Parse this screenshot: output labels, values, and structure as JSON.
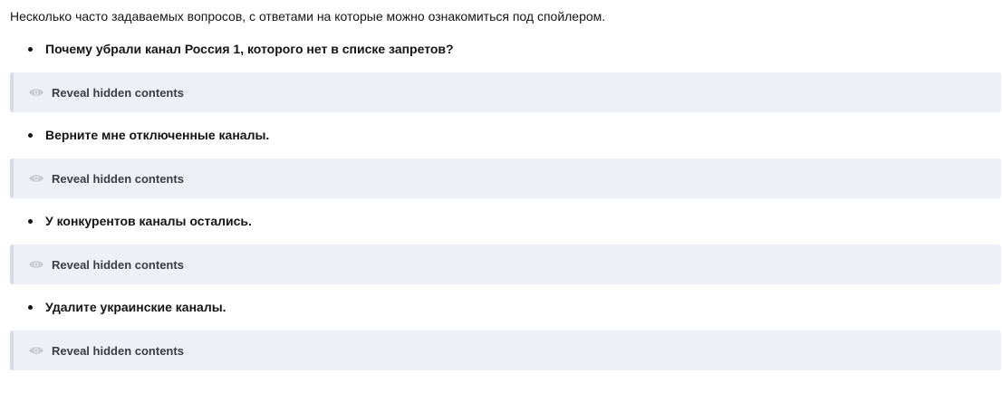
{
  "intro": "Несколько часто задаваемых вопросов, с ответами на которые можно ознакомиться под спойлером.",
  "items": [
    {
      "question": "Почему убрали канал Россия 1, которого нет в списке запретов?",
      "spoiler_label": "Reveal hidden contents"
    },
    {
      "question": "Верните мне отключенные каналы.",
      "spoiler_label": "Reveal hidden contents"
    },
    {
      "question": "У конкурентов каналы остались.",
      "spoiler_label": "Reveal hidden contents"
    },
    {
      "question": "Удалите украинские каналы.",
      "spoiler_label": "Reveal hidden contents"
    }
  ],
  "icons": {
    "spoiler": "eye-icon"
  },
  "colors": {
    "spoiler_bg": "#eef0f8",
    "spoiler_border": "#d9dce4"
  }
}
